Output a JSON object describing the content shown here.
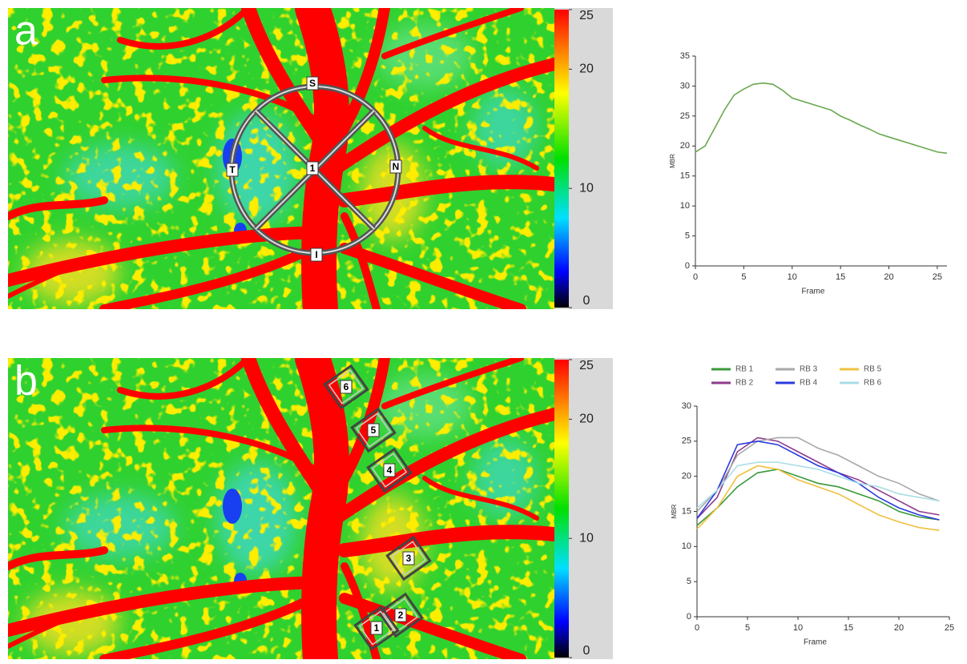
{
  "panels": [
    {
      "label": "a",
      "colorbar": {
        "lim": [
          0,
          25
        ],
        "ticks": [
          0,
          10,
          20,
          25
        ]
      },
      "markers": [
        "S",
        "T",
        "N",
        "I",
        "1"
      ]
    },
    {
      "label": "b",
      "colorbar": {
        "lim": [
          0,
          25
        ],
        "ticks": [
          0,
          10,
          20,
          25
        ]
      },
      "markers": [
        "6",
        "5",
        "4",
        "3",
        "2",
        "1"
      ]
    }
  ],
  "chart_data": [
    {
      "type": "line",
      "xlabel": "Frame",
      "ylabel": "MBR",
      "x": [
        0,
        1,
        2,
        3,
        4,
        5,
        6,
        7,
        8,
        9,
        10,
        11,
        12,
        13,
        14,
        15,
        16,
        17,
        18,
        19,
        20,
        21,
        22,
        23,
        24,
        25,
        26
      ],
      "series": [
        {
          "color": "#6aa84f",
          "values": [
            19,
            20,
            23,
            26,
            28.5,
            29.5,
            30.3,
            30.5,
            30.3,
            29.3,
            28,
            27.5,
            27,
            26.5,
            26,
            25,
            24.3,
            23.5,
            22.8,
            22,
            21.5,
            21,
            20.5,
            20,
            19.5,
            19,
            18.8
          ]
        }
      ],
      "xlim": [
        0,
        26
      ],
      "ylim": [
        0,
        35
      ],
      "xticks": [
        0,
        5,
        10,
        15,
        20,
        25
      ],
      "yticks": [
        0,
        5,
        10,
        15,
        20,
        25,
        30,
        35
      ]
    },
    {
      "type": "line",
      "xlabel": "Frame",
      "ylabel": "MBR",
      "x": [
        0,
        2,
        4,
        6,
        8,
        10,
        12,
        14,
        16,
        18,
        20,
        22,
        24
      ],
      "series": [
        {
          "name": "RB 1",
          "color": "#3a9a3a",
          "values": [
            13,
            15.5,
            18.5,
            20.5,
            21,
            20,
            19,
            18.5,
            17.5,
            16.5,
            15,
            14.2,
            13.8
          ]
        },
        {
          "name": "RB 2",
          "color": "#8e3a8e",
          "values": [
            14,
            17,
            23.5,
            25.5,
            25,
            23.5,
            22,
            20.5,
            19.5,
            18,
            16.5,
            15,
            14.5
          ]
        },
        {
          "name": "RB 3",
          "color": "#a8a8a8",
          "values": [
            15,
            18,
            23,
            25,
            25.5,
            25.5,
            24,
            23,
            21.5,
            20,
            19,
            17.5,
            16.5
          ]
        },
        {
          "name": "RB 4",
          "color": "#2a3adf",
          "values": [
            14,
            18,
            24.5,
            25,
            24.5,
            23,
            21.5,
            20.5,
            19,
            17,
            15.5,
            14.5,
            13.8
          ]
        },
        {
          "name": "RB 5",
          "color": "#f0c040",
          "values": [
            12.5,
            15.5,
            20,
            21.5,
            21,
            19.5,
            18.5,
            17.5,
            16,
            14.5,
            13.5,
            12.7,
            12.3
          ]
        },
        {
          "name": "RB 6",
          "color": "#a8dde6",
          "values": [
            15.5,
            18,
            21.5,
            22,
            22,
            21.5,
            21,
            20,
            19,
            18.5,
            17.5,
            17,
            16.5
          ]
        }
      ],
      "xlim": [
        0,
        25
      ],
      "ylim": [
        0,
        30
      ],
      "xticks": [
        0,
        5,
        10,
        15,
        20,
        25
      ],
      "yticks": [
        0,
        5,
        10,
        15,
        20,
        25,
        30
      ]
    }
  ]
}
